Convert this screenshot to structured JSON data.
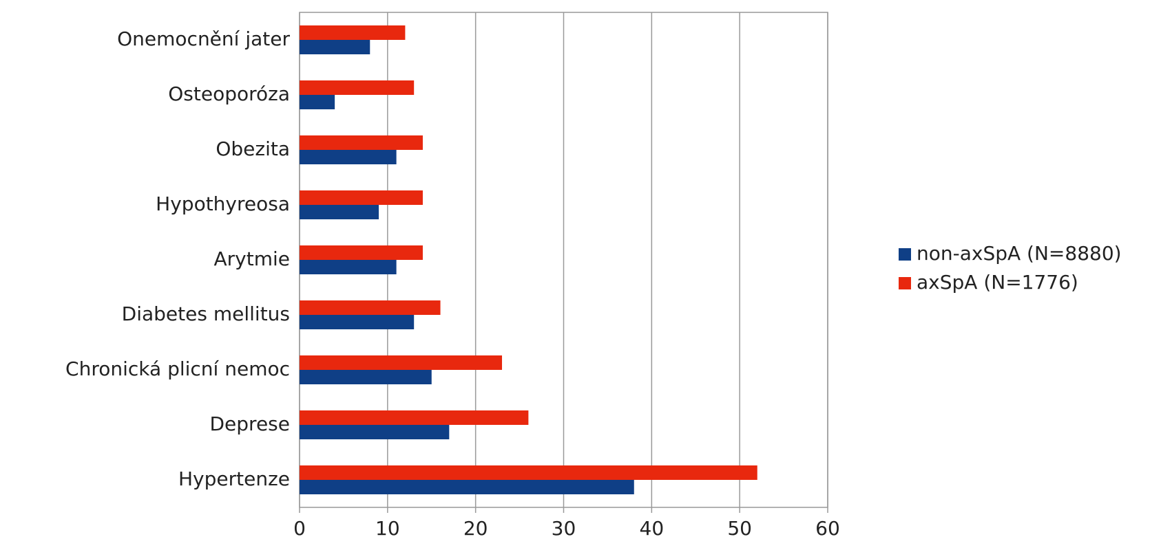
{
  "chart_data": {
    "type": "hbar",
    "categories": [
      "Onemocnění jater",
      "Osteoporóza",
      "Obezita",
      "Hypothyreosa",
      "Arytmie",
      "Diabetes mellitus",
      "Chronická plicní nemoc",
      "Deprese",
      "Hypertenze"
    ],
    "series": [
      {
        "name": "non-axSpA (N=8880)",
        "color": "#0f3f86",
        "values": [
          8,
          4,
          11,
          9,
          11,
          13,
          15,
          17,
          38
        ]
      },
      {
        "name": "axSpA (N=1776)",
        "color": "#e8280e",
        "values": [
          12,
          13,
          14,
          14,
          14,
          16,
          23,
          26,
          52
        ]
      }
    ],
    "xlim": [
      0,
      60
    ],
    "xticks": [
      0,
      10,
      20,
      30,
      40,
      50,
      60
    ],
    "grid": true,
    "legend": "right"
  }
}
